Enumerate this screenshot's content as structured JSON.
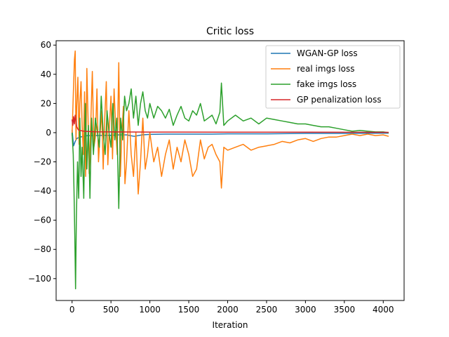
{
  "chart_data": {
    "type": "line",
    "title": "Critic loss",
    "xlabel": "Iteration",
    "ylabel": "",
    "xlim": [
      -205,
      4268
    ],
    "ylim": [
      -115,
      63
    ],
    "xticks": [
      0,
      500,
      1000,
      1500,
      2000,
      2500,
      3000,
      3500,
      4000
    ],
    "yticks": [
      -100,
      -80,
      -60,
      -40,
      -20,
      0,
      20,
      40,
      60
    ],
    "ytick_labels": [
      "−100",
      "−80",
      "−60",
      "−40",
      "−20",
      "0",
      "20",
      "40",
      "60"
    ],
    "grid": false,
    "legend_position": "top-right",
    "series": [
      {
        "name": "WGAN-GP loss",
        "color": "#1f77b4",
        "x": [
          0,
          20,
          40,
          60,
          100,
          150,
          200,
          300,
          400,
          500,
          600,
          700,
          800,
          900,
          1000,
          1200,
          1400,
          1600,
          1800,
          2000,
          2500,
          3000,
          3500,
          4070
        ],
        "y": [
          2,
          -9,
          -6,
          -4,
          -3,
          -2.5,
          -2,
          -2,
          -1.8,
          -1.8,
          -1.5,
          -1.5,
          -2.5,
          -1.5,
          -1.2,
          -1,
          -1,
          -1,
          -1,
          -0.8,
          -0.8,
          -0.5,
          -0.5,
          -0.3
        ]
      },
      {
        "name": "real imgs loss",
        "color": "#ff7f0e",
        "x": [
          0,
          15,
          30,
          40,
          50,
          60,
          75,
          90,
          100,
          115,
          130,
          145,
          160,
          175,
          190,
          205,
          220,
          240,
          260,
          280,
          300,
          320,
          340,
          360,
          380,
          400,
          420,
          440,
          460,
          480,
          500,
          520,
          540,
          560,
          580,
          600,
          620,
          640,
          660,
          680,
          700,
          730,
          760,
          790,
          820,
          850,
          880,
          910,
          940,
          970,
          1000,
          1050,
          1100,
          1150,
          1200,
          1250,
          1300,
          1350,
          1400,
          1450,
          1500,
          1550,
          1600,
          1650,
          1700,
          1750,
          1800,
          1850,
          1900,
          1920,
          1950,
          2000,
          2100,
          2200,
          2300,
          2400,
          2500,
          2600,
          2700,
          2800,
          2900,
          3000,
          3100,
          3200,
          3300,
          3400,
          3500,
          3600,
          3700,
          3800,
          3900,
          4000,
          4070
        ],
        "y": [
          -2,
          25,
          50,
          56,
          -5,
          18,
          38,
          -8,
          20,
          35,
          5,
          -15,
          28,
          -30,
          44,
          10,
          -28,
          5,
          42,
          -10,
          -3,
          30,
          -20,
          0,
          15,
          -25,
          10,
          35,
          -22,
          5,
          25,
          -18,
          30,
          5,
          -15,
          48,
          -30,
          0,
          18,
          -35,
          -20,
          15,
          -15,
          -30,
          0,
          -42,
          -20,
          10,
          -25,
          -15,
          0,
          -20,
          -10,
          -30,
          -15,
          -5,
          -25,
          -10,
          -20,
          -5,
          -15,
          -30,
          -25,
          -5,
          -18,
          -10,
          -8,
          -15,
          -20,
          -38,
          -10,
          -12,
          -10,
          -8,
          -12,
          -10,
          -9,
          -8,
          -6,
          -7,
          -5,
          -4,
          -6,
          -4,
          -3,
          -3,
          -2,
          -1,
          -2,
          -1,
          -2,
          -1.5,
          -2.5
        ]
      },
      {
        "name": "fake imgs loss",
        "color": "#2ca02c",
        "x": [
          0,
          15,
          25,
          35,
          45,
          55,
          70,
          85,
          100,
          115,
          130,
          150,
          170,
          190,
          210,
          230,
          250,
          275,
          300,
          325,
          350,
          375,
          400,
          425,
          450,
          475,
          500,
          525,
          550,
          575,
          600,
          625,
          650,
          675,
          700,
          730,
          760,
          790,
          820,
          850,
          880,
          910,
          940,
          970,
          1000,
          1050,
          1100,
          1150,
          1200,
          1250,
          1300,
          1350,
          1400,
          1450,
          1500,
          1550,
          1600,
          1650,
          1700,
          1750,
          1800,
          1850,
          1900,
          1920,
          1950,
          2000,
          2100,
          2200,
          2300,
          2400,
          2500,
          2600,
          2700,
          2800,
          2900,
          3000,
          3100,
          3200,
          3300,
          3400,
          3500,
          3600,
          3700,
          3800,
          3900,
          4000,
          4070
        ],
        "y": [
          0,
          -15,
          -40,
          -70,
          -107,
          -60,
          -20,
          -45,
          10,
          -30,
          -10,
          -45,
          20,
          -25,
          5,
          -45,
          10,
          -15,
          10,
          0,
          -10,
          25,
          0,
          -15,
          15,
          0,
          -10,
          20,
          -5,
          10,
          -52,
          10,
          -5,
          25,
          15,
          20,
          30,
          10,
          25,
          5,
          20,
          28,
          15,
          10,
          20,
          10,
          18,
          15,
          10,
          16,
          5,
          12,
          18,
          10,
          8,
          15,
          12,
          20,
          8,
          10,
          12,
          6,
          14,
          34,
          5,
          8,
          12,
          8,
          10,
          6,
          10,
          9,
          8,
          7,
          6,
          6,
          5,
          4,
          4,
          3,
          2,
          1,
          1.5,
          1,
          0.5,
          0.5,
          0
        ]
      },
      {
        "name": "GP penalization loss",
        "color": "#d62728",
        "x": [
          0,
          10,
          20,
          30,
          40,
          50,
          60,
          80,
          100,
          150,
          200,
          300,
          500,
          1000,
          2000,
          3000,
          4070
        ],
        "y": [
          9,
          5,
          11,
          6,
          12,
          8,
          4,
          2,
          1.5,
          1,
          0.8,
          0.6,
          0.5,
          0.4,
          0.3,
          0.3,
          0.2
        ]
      }
    ]
  }
}
